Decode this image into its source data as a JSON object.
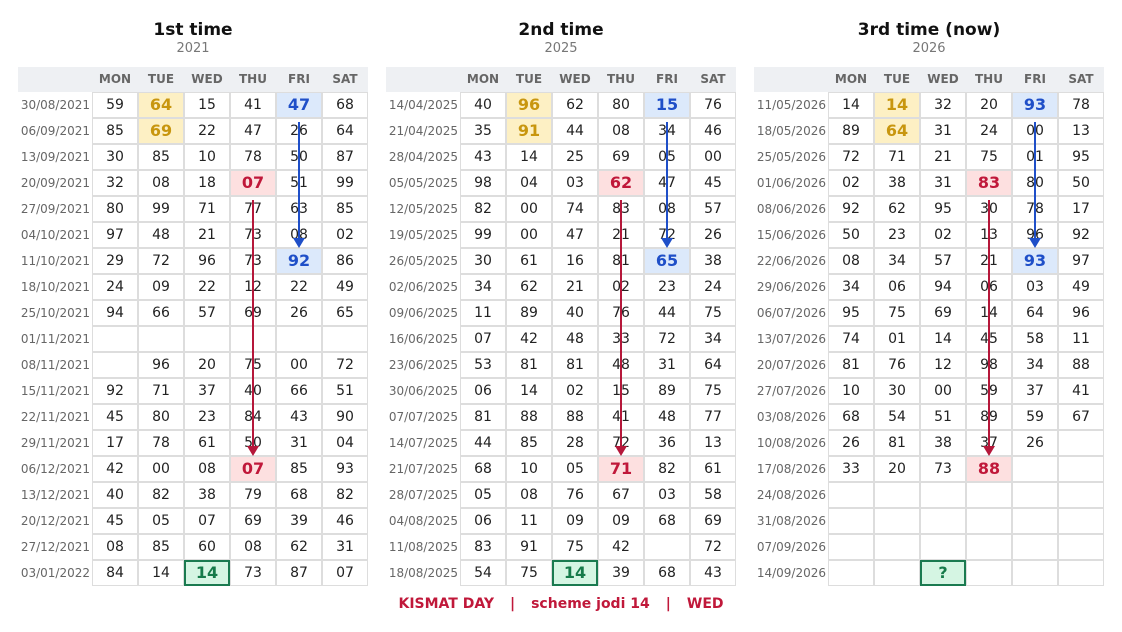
{
  "panels": [
    {
      "title": "1st time",
      "subtitle": "2021",
      "days": [
        "MON",
        "TUE",
        "WED",
        "THU",
        "FRI",
        "SAT"
      ],
      "rows": [
        {
          "date": "30/08/2021",
          "cells": [
            "59",
            "64",
            "15",
            "41",
            "47",
            "68"
          ]
        },
        {
          "date": "06/09/2021",
          "cells": [
            "85",
            "69",
            "22",
            "47",
            "26",
            "64"
          ]
        },
        {
          "date": "13/09/2021",
          "cells": [
            "30",
            "85",
            "10",
            "78",
            "50",
            "87"
          ]
        },
        {
          "date": "20/09/2021",
          "cells": [
            "32",
            "08",
            "18",
            "07",
            "51",
            "99"
          ]
        },
        {
          "date": "27/09/2021",
          "cells": [
            "80",
            "99",
            "71",
            "77",
            "63",
            "85"
          ]
        },
        {
          "date": "04/10/2021",
          "cells": [
            "97",
            "48",
            "21",
            "73",
            "08",
            "02"
          ]
        },
        {
          "date": "11/10/2021",
          "cells": [
            "29",
            "72",
            "96",
            "73",
            "92",
            "86"
          ]
        },
        {
          "date": "18/10/2021",
          "cells": [
            "24",
            "09",
            "22",
            "12",
            "22",
            "49"
          ]
        },
        {
          "date": "25/10/2021",
          "cells": [
            "94",
            "66",
            "57",
            "69",
            "26",
            "65"
          ]
        },
        {
          "date": "01/11/2021",
          "cells": [
            null,
            null,
            null,
            null,
            null,
            null
          ]
        },
        {
          "date": "08/11/2021",
          "cells": [
            null,
            "96",
            "20",
            "75",
            "00",
            "72"
          ]
        },
        {
          "date": "15/11/2021",
          "cells": [
            "92",
            "71",
            "37",
            "40",
            "66",
            "51"
          ]
        },
        {
          "date": "22/11/2021",
          "cells": [
            "45",
            "80",
            "23",
            "84",
            "43",
            "90"
          ]
        },
        {
          "date": "29/11/2021",
          "cells": [
            "17",
            "78",
            "61",
            "50",
            "31",
            "04"
          ]
        },
        {
          "date": "06/12/2021",
          "cells": [
            "42",
            "00",
            "08",
            "07",
            "85",
            "93"
          ]
        },
        {
          "date": "13/12/2021",
          "cells": [
            "40",
            "82",
            "38",
            "79",
            "68",
            "82"
          ]
        },
        {
          "date": "20/12/2021",
          "cells": [
            "45",
            "05",
            "07",
            "69",
            "39",
            "46"
          ]
        },
        {
          "date": "27/12/2021",
          "cells": [
            "08",
            "85",
            "60",
            "08",
            "62",
            "31"
          ]
        },
        {
          "date": "03/01/2022",
          "cells": [
            "84",
            "14",
            "14",
            "73",
            "87",
            "07"
          ]
        }
      ]
    },
    {
      "title": "2nd time",
      "subtitle": "2025",
      "days": [
        "MON",
        "TUE",
        "WED",
        "THU",
        "FRI",
        "SAT"
      ],
      "rows": [
        {
          "date": "14/04/2025",
          "cells": [
            "40",
            "96",
            "62",
            "80",
            "15",
            "76"
          ]
        },
        {
          "date": "21/04/2025",
          "cells": [
            "35",
            "91",
            "44",
            "08",
            "34",
            "46"
          ]
        },
        {
          "date": "28/04/2025",
          "cells": [
            "43",
            "14",
            "25",
            "69",
            "05",
            "00"
          ]
        },
        {
          "date": "05/05/2025",
          "cells": [
            "98",
            "04",
            "03",
            "62",
            "47",
            "45"
          ]
        },
        {
          "date": "12/05/2025",
          "cells": [
            "82",
            "00",
            "74",
            "83",
            "08",
            "57"
          ]
        },
        {
          "date": "19/05/2025",
          "cells": [
            "99",
            "00",
            "47",
            "21",
            "72",
            "26"
          ]
        },
        {
          "date": "26/05/2025",
          "cells": [
            "30",
            "61",
            "16",
            "81",
            "65",
            "38"
          ]
        },
        {
          "date": "02/06/2025",
          "cells": [
            "34",
            "62",
            "21",
            "02",
            "23",
            "24"
          ]
        },
        {
          "date": "09/06/2025",
          "cells": [
            "11",
            "89",
            "40",
            "76",
            "44",
            "75"
          ]
        },
        {
          "date": "16/06/2025",
          "cells": [
            "07",
            "42",
            "48",
            "33",
            "72",
            "34"
          ]
        },
        {
          "date": "23/06/2025",
          "cells": [
            "53",
            "81",
            "81",
            "48",
            "31",
            "64"
          ]
        },
        {
          "date": "30/06/2025",
          "cells": [
            "06",
            "14",
            "02",
            "15",
            "89",
            "75"
          ]
        },
        {
          "date": "07/07/2025",
          "cells": [
            "81",
            "88",
            "88",
            "41",
            "48",
            "77"
          ]
        },
        {
          "date": "14/07/2025",
          "cells": [
            "44",
            "85",
            "28",
            "72",
            "36",
            "13"
          ]
        },
        {
          "date": "21/07/2025",
          "cells": [
            "68",
            "10",
            "05",
            "71",
            "82",
            "61"
          ]
        },
        {
          "date": "28/07/2025",
          "cells": [
            "05",
            "08",
            "76",
            "67",
            "03",
            "58"
          ]
        },
        {
          "date": "04/08/2025",
          "cells": [
            "06",
            "11",
            "09",
            "09",
            "68",
            "69"
          ]
        },
        {
          "date": "11/08/2025",
          "cells": [
            "83",
            "91",
            "75",
            "42",
            null,
            "72"
          ]
        },
        {
          "date": "18/08/2025",
          "cells": [
            "54",
            "75",
            "14",
            "39",
            "68",
            "43"
          ]
        }
      ]
    },
    {
      "title": "3rd time  (now)",
      "subtitle": "2026",
      "days": [
        "MON",
        "TUE",
        "WED",
        "THU",
        "FRI",
        "SAT"
      ],
      "rows": [
        {
          "date": "11/05/2026",
          "cells": [
            "14",
            "14",
            "32",
            "20",
            "93",
            "78"
          ]
        },
        {
          "date": "18/05/2026",
          "cells": [
            "89",
            "64",
            "31",
            "24",
            "00",
            "13"
          ]
        },
        {
          "date": "25/05/2026",
          "cells": [
            "72",
            "71",
            "21",
            "75",
            "01",
            "95"
          ]
        },
        {
          "date": "01/06/2026",
          "cells": [
            "02",
            "38",
            "31",
            "83",
            "80",
            "50"
          ]
        },
        {
          "date": "08/06/2026",
          "cells": [
            "92",
            "62",
            "95",
            "30",
            "78",
            "17"
          ]
        },
        {
          "date": "15/06/2026",
          "cells": [
            "50",
            "23",
            "02",
            "13",
            "96",
            "92"
          ]
        },
        {
          "date": "22/06/2026",
          "cells": [
            "08",
            "34",
            "57",
            "21",
            "93",
            "97"
          ]
        },
        {
          "date": "29/06/2026",
          "cells": [
            "34",
            "06",
            "94",
            "06",
            "03",
            "49"
          ]
        },
        {
          "date": "06/07/2026",
          "cells": [
            "95",
            "75",
            "69",
            "14",
            "64",
            "96"
          ]
        },
        {
          "date": "13/07/2026",
          "cells": [
            "74",
            "01",
            "14",
            "45",
            "58",
            "11"
          ]
        },
        {
          "date": "20/07/2026",
          "cells": [
            "81",
            "76",
            "12",
            "98",
            "34",
            "88"
          ]
        },
        {
          "date": "27/07/2026",
          "cells": [
            "10",
            "30",
            "00",
            "59",
            "37",
            "41"
          ]
        },
        {
          "date": "03/08/2026",
          "cells": [
            "68",
            "54",
            "51",
            "89",
            "59",
            "67"
          ]
        },
        {
          "date": "10/08/2026",
          "cells": [
            "26",
            "81",
            "38",
            "37",
            "26",
            null
          ]
        },
        {
          "date": "17/08/2026",
          "cells": [
            "33",
            "20",
            "73",
            "88",
            null,
            null
          ]
        },
        {
          "date": "24/08/2026",
          "cells": [
            null,
            null,
            null,
            null,
            null,
            null
          ]
        },
        {
          "date": "31/08/2026",
          "cells": [
            null,
            null,
            null,
            null,
            null,
            null
          ]
        },
        {
          "date": "07/09/2026",
          "cells": [
            null,
            null,
            null,
            null,
            null,
            null
          ]
        },
        {
          "date": "14/09/2026",
          "cells": [
            null,
            null,
            "?",
            null,
            null,
            null
          ]
        }
      ]
    }
  ],
  "footer": {
    "items": [
      "KISMAT DAY",
      "scheme jodi 14",
      "WED"
    ],
    "separator": "|"
  }
}
